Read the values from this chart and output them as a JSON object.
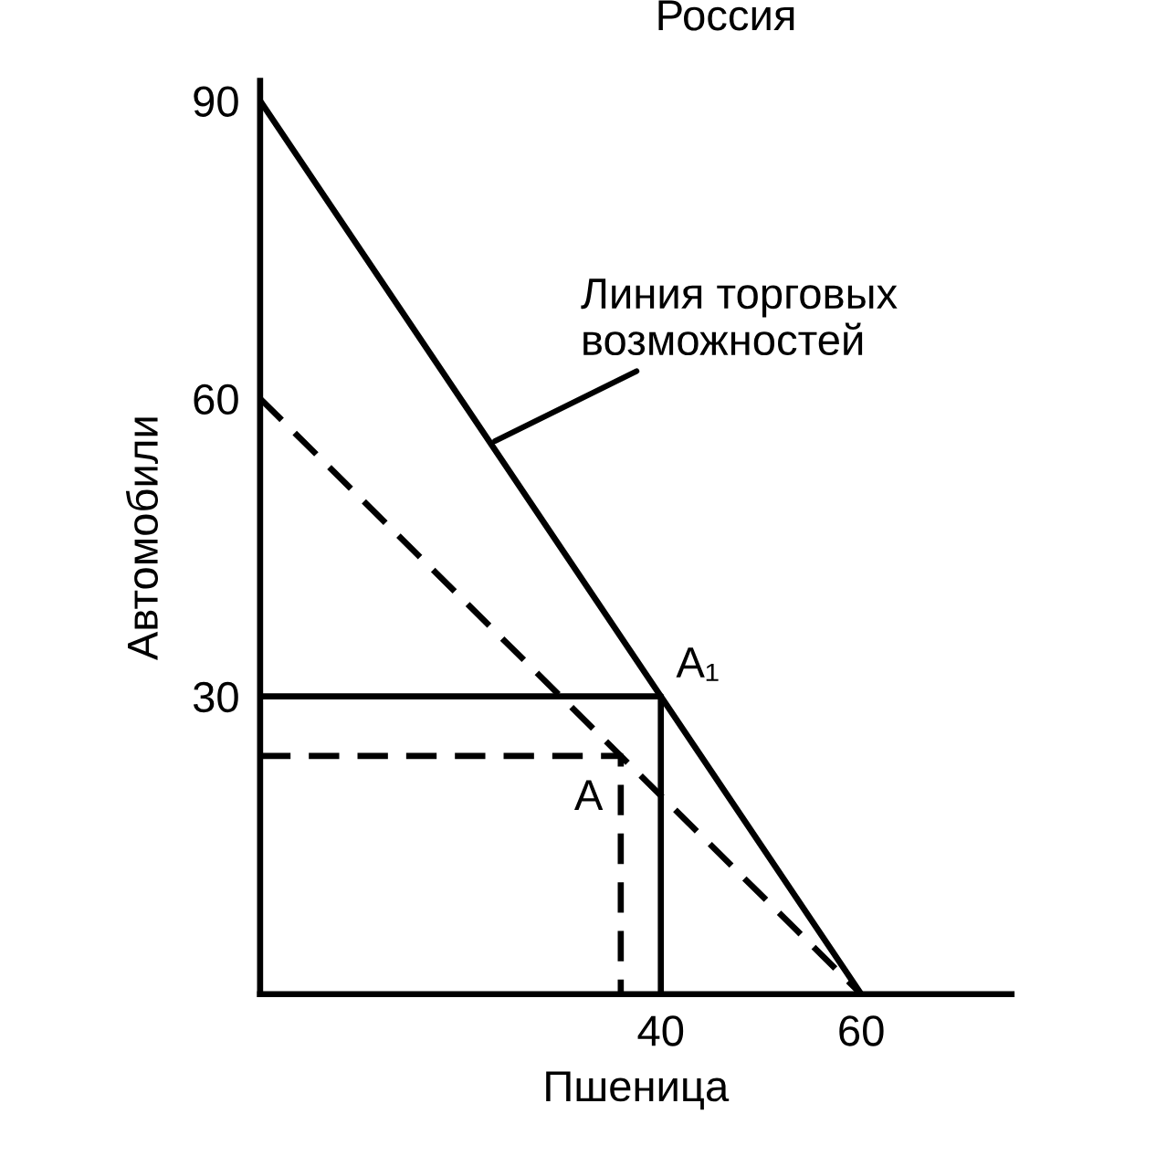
{
  "chart_data": {
    "type": "line",
    "title": "Россия",
    "xlabel": "Пшеница",
    "ylabel": "Автомобили",
    "xlim": [
      0,
      75
    ],
    "ylim": [
      0,
      92
    ],
    "xticks": [
      40,
      60
    ],
    "yticks": [
      30,
      60,
      90
    ],
    "grid": false,
    "legend": false,
    "marker": "none",
    "series": [
      {
        "x": [
          0,
          60
        ],
        "values": [
          90,
          0
        ],
        "color": "#000000",
        "line_style": "solid"
      },
      {
        "x": [
          0,
          60
        ],
        "values": [
          60,
          0
        ],
        "color": "#000000",
        "line_style": "dashed"
      },
      {
        "x": [
          0,
          40,
          40
        ],
        "values": [
          30,
          30,
          0
        ],
        "color": "#000000",
        "line_style": "solid"
      },
      {
        "x": [
          0,
          36,
          36
        ],
        "values": [
          24,
          24,
          0
        ],
        "color": "#000000",
        "line_style": "dashed"
      }
    ],
    "annotations": [
      {
        "text": "Линия торговых\nвозможностей",
        "x": 23,
        "y": 55.5
      },
      {
        "text": "A₁",
        "x": 40,
        "y": 30
      },
      {
        "text": "A",
        "x": 36,
        "y": 24
      }
    ]
  }
}
